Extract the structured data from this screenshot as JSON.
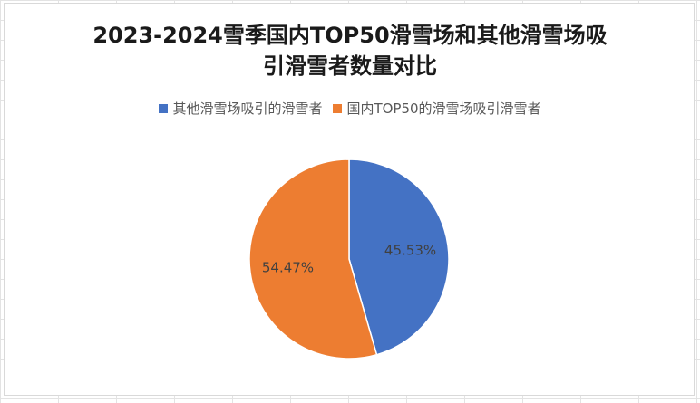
{
  "chart_data": {
    "type": "pie",
    "title_lines": [
      "2023-2024雪季国内TOP50滑雪场和其他滑雪场吸",
      "引滑雪者数量对比"
    ],
    "legend_position": "top",
    "categories": [
      "其他滑雪场吸引的滑雪者",
      "国内TOP50的滑雪场吸引滑雪者"
    ],
    "values": [
      45.53,
      54.47
    ],
    "data_labels": [
      "45.53%",
      "54.47%"
    ],
    "colors": [
      "#4472C4",
      "#ED7D31"
    ]
  }
}
